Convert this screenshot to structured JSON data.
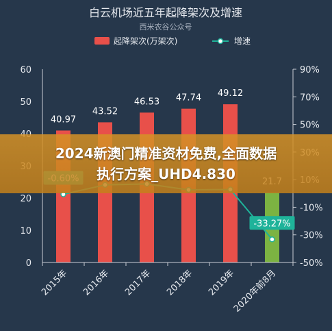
{
  "chart_data": {
    "type": "bar",
    "title": "白云机场近五年起降架次及增速",
    "subtitle": "西米农谷公众号",
    "categories": [
      "2015年",
      "2016年",
      "2017年",
      "2018年",
      "2019年",
      "2020年前8月"
    ],
    "series": [
      {
        "name": "起降架次(万架次)",
        "type": "bar",
        "axis": "left",
        "values": [
          40.97,
          43.52,
          46.53,
          47.74,
          49.12,
          21.7
        ],
        "labels": [
          "40.97",
          "43.52",
          "46.53",
          "47.74",
          "49.12",
          "21.7"
        ],
        "color": "#e8504a",
        "last_color": "#7cb342"
      },
      {
        "name": "增速",
        "type": "line",
        "axis": "right",
        "values": [
          -0.6,
          6.2,
          6.9,
          2.6,
          2.9,
          -33.27
        ],
        "labels": [
          "-0.60%",
          "",
          "",
          "",
          "",
          "-33.27%"
        ],
        "color": "#1fb39a"
      }
    ],
    "y_left": {
      "range": [
        0,
        60
      ],
      "ticks": [
        "0",
        "10",
        "20",
        "30",
        "40",
        "50",
        "60"
      ]
    },
    "y_right": {
      "range": [
        -50,
        90
      ],
      "ticks": [
        "-50%",
        "-30%",
        "-10%",
        "10%",
        "30%",
        "50%",
        "70%",
        "90%"
      ]
    },
    "grid": false,
    "legend_position": "top"
  },
  "banner": {
    "line1": "2024新澳门精准资材免费,全面数据",
    "line2": "执行方案_UHD4.830"
  },
  "colors": {
    "background": "#26374b",
    "text": "#e6e9ee",
    "axis": "#c9ced6"
  }
}
